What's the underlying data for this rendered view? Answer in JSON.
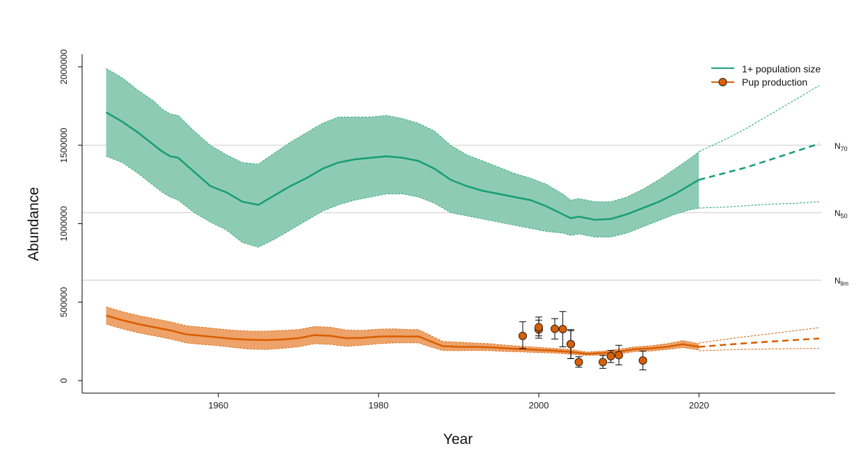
{
  "chart_data": {
    "type": "line",
    "title": "",
    "xlabel": "Year",
    "ylabel": "Abundance",
    "xlim": [
      1943,
      2037
    ],
    "ylim": [
      -80000,
      2080000
    ],
    "x_ticks": [
      1960,
      1980,
      2000,
      2020
    ],
    "y_ticks": [
      0,
      500000,
      1000000,
      1500000,
      2000000
    ],
    "x_tick_labels": [
      "1960",
      "1980",
      "2000",
      "2020"
    ],
    "y_tick_labels": [
      "0",
      "500000",
      "1000000",
      "1500000",
      "2000000"
    ],
    "grid": false,
    "legend_position": "top-right",
    "colors": {
      "green_line": "#1b9e77",
      "green_band": "#8ecbb5",
      "orange_line": "#d95f02",
      "orange_band": "#eda36a",
      "ref_line": "#cccccc",
      "point_fill": "#d95f02"
    },
    "reference_lines": [
      {
        "label": "N",
        "sub": "70",
        "value": 1500000
      },
      {
        "label": "N",
        "sub": "50",
        "value": 1070000
      },
      {
        "label": "N",
        "sub": "lim",
        "value": 640000
      }
    ],
    "series": [
      {
        "name": "1+ population size",
        "kind": "band",
        "years": [
          1946,
          1948,
          1950,
          1952,
          1953,
          1954,
          1955,
          1957,
          1959,
          1961,
          1963,
          1965,
          1967,
          1969,
          1971,
          1973,
          1975,
          1977,
          1979,
          1981,
          1983,
          1985,
          1987,
          1989,
          1991,
          1993,
          1995,
          1997,
          1999,
          2001,
          2003,
          2004,
          2005,
          2007,
          2009,
          2011,
          2013,
          2015,
          2017,
          2019,
          2020
        ],
        "median": [
          1710000,
          1650000,
          1580000,
          1500000,
          1460000,
          1430000,
          1420000,
          1330000,
          1240000,
          1200000,
          1140000,
          1120000,
          1180000,
          1240000,
          1290000,
          1350000,
          1390000,
          1410000,
          1420000,
          1430000,
          1420000,
          1400000,
          1350000,
          1280000,
          1240000,
          1210000,
          1190000,
          1170000,
          1150000,
          1110000,
          1060000,
          1035000,
          1045000,
          1025000,
          1030000,
          1060000,
          1100000,
          1140000,
          1190000,
          1250000,
          1280000
        ],
        "lower": [
          1430000,
          1390000,
          1320000,
          1240000,
          1200000,
          1170000,
          1150000,
          1070000,
          1010000,
          960000,
          880000,
          850000,
          900000,
          960000,
          1020000,
          1080000,
          1120000,
          1150000,
          1170000,
          1190000,
          1190000,
          1170000,
          1130000,
          1070000,
          1050000,
          1030000,
          1010000,
          990000,
          970000,
          950000,
          940000,
          925000,
          935000,
          915000,
          915000,
          940000,
          980000,
          1020000,
          1060000,
          1090000,
          1100000
        ],
        "upper": [
          1990000,
          1930000,
          1850000,
          1780000,
          1730000,
          1700000,
          1690000,
          1590000,
          1500000,
          1440000,
          1390000,
          1380000,
          1450000,
          1520000,
          1580000,
          1640000,
          1680000,
          1680000,
          1680000,
          1690000,
          1670000,
          1640000,
          1590000,
          1500000,
          1440000,
          1400000,
          1360000,
          1320000,
          1290000,
          1250000,
          1190000,
          1150000,
          1160000,
          1140000,
          1140000,
          1170000,
          1220000,
          1280000,
          1350000,
          1420000,
          1460000
        ]
      },
      {
        "name": "1+ population size projection",
        "kind": "projection",
        "years": [
          2020,
          2023,
          2026,
          2029,
          2032,
          2035
        ],
        "median": [
          1280000,
          1320000,
          1360000,
          1410000,
          1460000,
          1510000
        ],
        "lower": [
          1100000,
          1105000,
          1115000,
          1125000,
          1130000,
          1140000
        ],
        "upper": [
          1460000,
          1530000,
          1610000,
          1700000,
          1790000,
          1880000
        ]
      },
      {
        "name": "Pup production",
        "kind": "band",
        "years": [
          1946,
          1948,
          1950,
          1952,
          1954,
          1956,
          1958,
          1960,
          1962,
          1964,
          1966,
          1968,
          1970,
          1972,
          1974,
          1976,
          1978,
          1980,
          1982,
          1984,
          1985,
          1986,
          1988,
          1990,
          1992,
          1994,
          1996,
          1998,
          2000,
          2002,
          2004,
          2006,
          2008,
          2010,
          2012,
          2014,
          2016,
          2018,
          2020
        ],
        "median": [
          415000,
          385000,
          360000,
          340000,
          320000,
          295000,
          285000,
          275000,
          265000,
          260000,
          258000,
          262000,
          270000,
          290000,
          285000,
          270000,
          272000,
          280000,
          282000,
          280000,
          282000,
          260000,
          220000,
          215000,
          215000,
          212000,
          205000,
          200000,
          195000,
          190000,
          182000,
          170000,
          175000,
          185000,
          200000,
          205000,
          215000,
          232000,
          215000
        ],
        "lower": [
          360000,
          330000,
          305000,
          285000,
          265000,
          240000,
          230000,
          222000,
          210000,
          200000,
          198000,
          205000,
          215000,
          235000,
          230000,
          218000,
          225000,
          235000,
          240000,
          240000,
          240000,
          222000,
          192000,
          190000,
          192000,
          190000,
          185000,
          182000,
          178000,
          175000,
          168000,
          160000,
          163000,
          170000,
          185000,
          188000,
          198000,
          210000,
          195000
        ],
        "upper": [
          470000,
          440000,
          415000,
          395000,
          375000,
          350000,
          340000,
          330000,
          320000,
          315000,
          315000,
          320000,
          325000,
          345000,
          340000,
          322000,
          320000,
          328000,
          330000,
          325000,
          325000,
          300000,
          250000,
          245000,
          240000,
          235000,
          225000,
          218000,
          212000,
          205000,
          198000,
          182000,
          188000,
          200000,
          215000,
          222000,
          235000,
          255000,
          235000
        ]
      },
      {
        "name": "Pup production projection",
        "kind": "projection",
        "years": [
          2020,
          2025,
          2030,
          2035
        ],
        "median": [
          215000,
          235000,
          252000,
          268000
        ],
        "lower": [
          190000,
          198000,
          202000,
          205000
        ],
        "upper": [
          240000,
          275000,
          305000,
          338000
        ]
      },
      {
        "name": "Pup production observations",
        "kind": "points",
        "points": [
          {
            "x": 1998,
            "y": 285000,
            "lo": 205000,
            "hi": 375000
          },
          {
            "x": 2000,
            "y": 325000,
            "lo": 270000,
            "hi": 385000
          },
          {
            "x": 2000,
            "y": 340000,
            "lo": 285000,
            "hi": 405000
          },
          {
            "x": 2002,
            "y": 330000,
            "lo": 265000,
            "hi": 395000
          },
          {
            "x": 2003,
            "y": 328000,
            "lo": 215000,
            "hi": 440000
          },
          {
            "x": 2004,
            "y": 232000,
            "lo": 140000,
            "hi": 325000
          },
          {
            "x": 2004,
            "y": 232000,
            "lo": 140000,
            "hi": 318000
          },
          {
            "x": 2005,
            "y": 118000,
            "lo": 85000,
            "hi": 152000
          },
          {
            "x": 2008,
            "y": 118000,
            "lo": 78000,
            "hi": 160000
          },
          {
            "x": 2009,
            "y": 155000,
            "lo": 115000,
            "hi": 192000
          },
          {
            "x": 2010,
            "y": 162000,
            "lo": 100000,
            "hi": 225000
          },
          {
            "x": 2013,
            "y": 128000,
            "lo": 68000,
            "hi": 188000
          }
        ]
      }
    ],
    "legend": [
      {
        "label": "1+ population size",
        "marker": "line",
        "color": "#1b9e77"
      },
      {
        "label": "Pup production",
        "marker": "line-point",
        "color": "#d95f02"
      }
    ]
  }
}
